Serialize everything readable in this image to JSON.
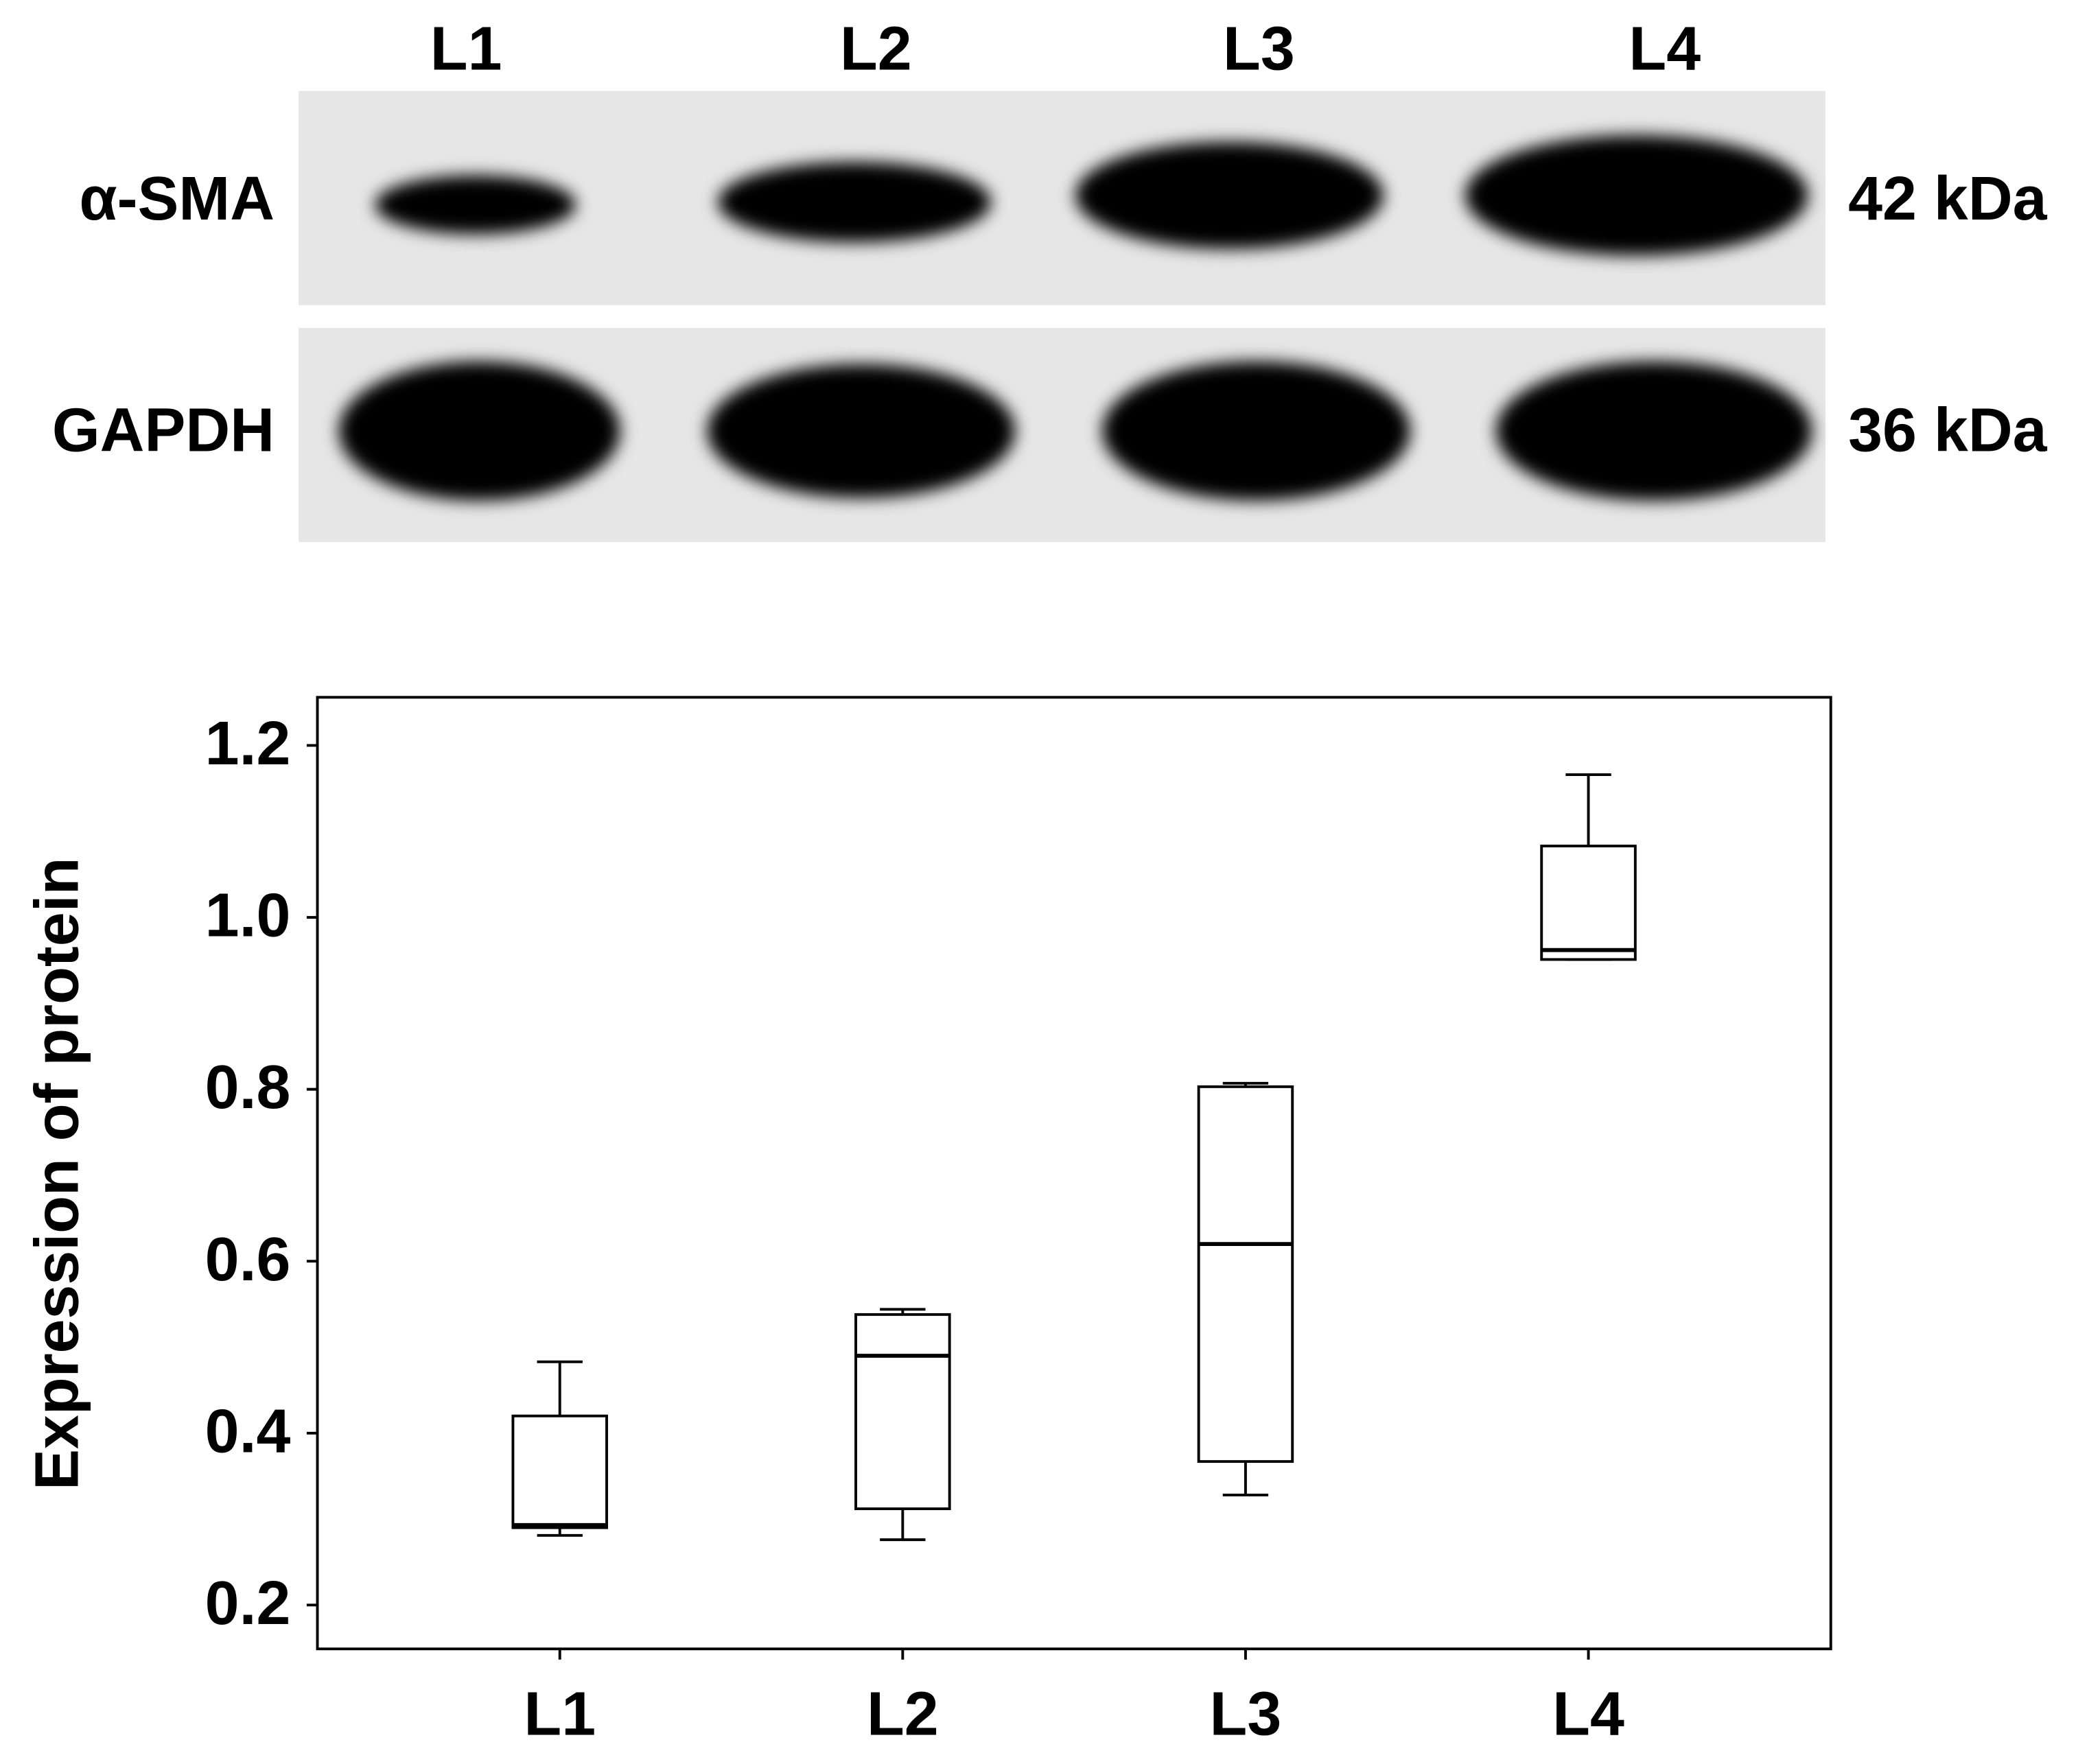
{
  "blot": {
    "lanes": [
      "L1",
      "L2",
      "L3",
      "L4"
    ],
    "rows": [
      {
        "label": "α-SMA",
        "size": "42 kDa"
      },
      {
        "label": "GAPDH",
        "size": "36 kDa"
      }
    ]
  },
  "chart_data": {
    "type": "box",
    "y_label": "Expression of protein",
    "categories": [
      "L1",
      "L2",
      "L3",
      "L4"
    ],
    "boxes": [
      {
        "whisker_low": 0.281,
        "q1": 0.29,
        "median": 0.293,
        "q3": 0.42,
        "whisker_high": 0.483
      },
      {
        "whisker_low": 0.276,
        "q1": 0.312,
        "median": 0.49,
        "q3": 0.538,
        "whisker_high": 0.544
      },
      {
        "whisker_low": 0.328,
        "q1": 0.367,
        "median": 0.62,
        "q3": 0.803,
        "whisker_high": 0.807
      },
      {
        "whisker_low": 0.951,
        "q1": 0.951,
        "median": 0.962,
        "q3": 1.083,
        "whisker_high": 1.166
      }
    ],
    "color": "#000000",
    "ylim": [
      0.149,
      1.256
    ],
    "yticks": [
      0.2,
      0.4,
      0.6,
      0.8,
      {
        "value": 1,
        "label": "1.0"
      },
      1.2
    ],
    "grid": false
  }
}
